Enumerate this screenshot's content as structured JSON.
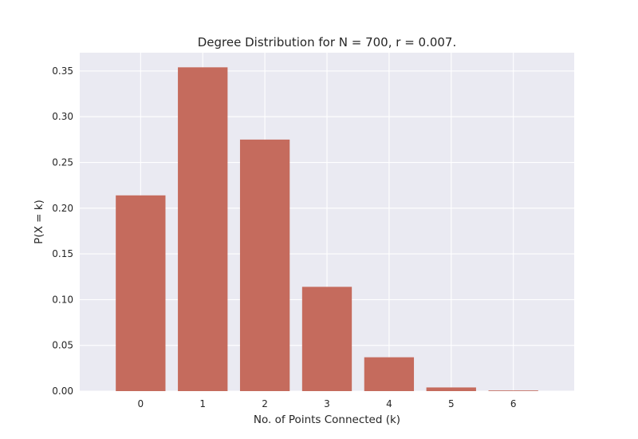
{
  "chart_data": {
    "type": "bar",
    "title": "Degree Distribution for N = 700, r = 0.007.",
    "xlabel": "No. of Points Connected (k)",
    "ylabel": "P(X = k)",
    "categories": [
      "0",
      "1",
      "2",
      "3",
      "4",
      "5",
      "6"
    ],
    "values": [
      0.214,
      0.354,
      0.275,
      0.114,
      0.037,
      0.004,
      0.0007
    ],
    "ylim": [
      0,
      0.37
    ],
    "yticks": [
      0.0,
      0.05,
      0.1,
      0.15,
      0.2,
      0.25,
      0.3,
      0.35
    ],
    "ytick_labels": [
      "0.00",
      "0.05",
      "0.10",
      "0.15",
      "0.20",
      "0.25",
      "0.30",
      "0.35"
    ],
    "grid": true,
    "colors": {
      "bar": "#c56b5d",
      "plot_background": "#eaeaf2",
      "grid": "#ffffff"
    }
  }
}
